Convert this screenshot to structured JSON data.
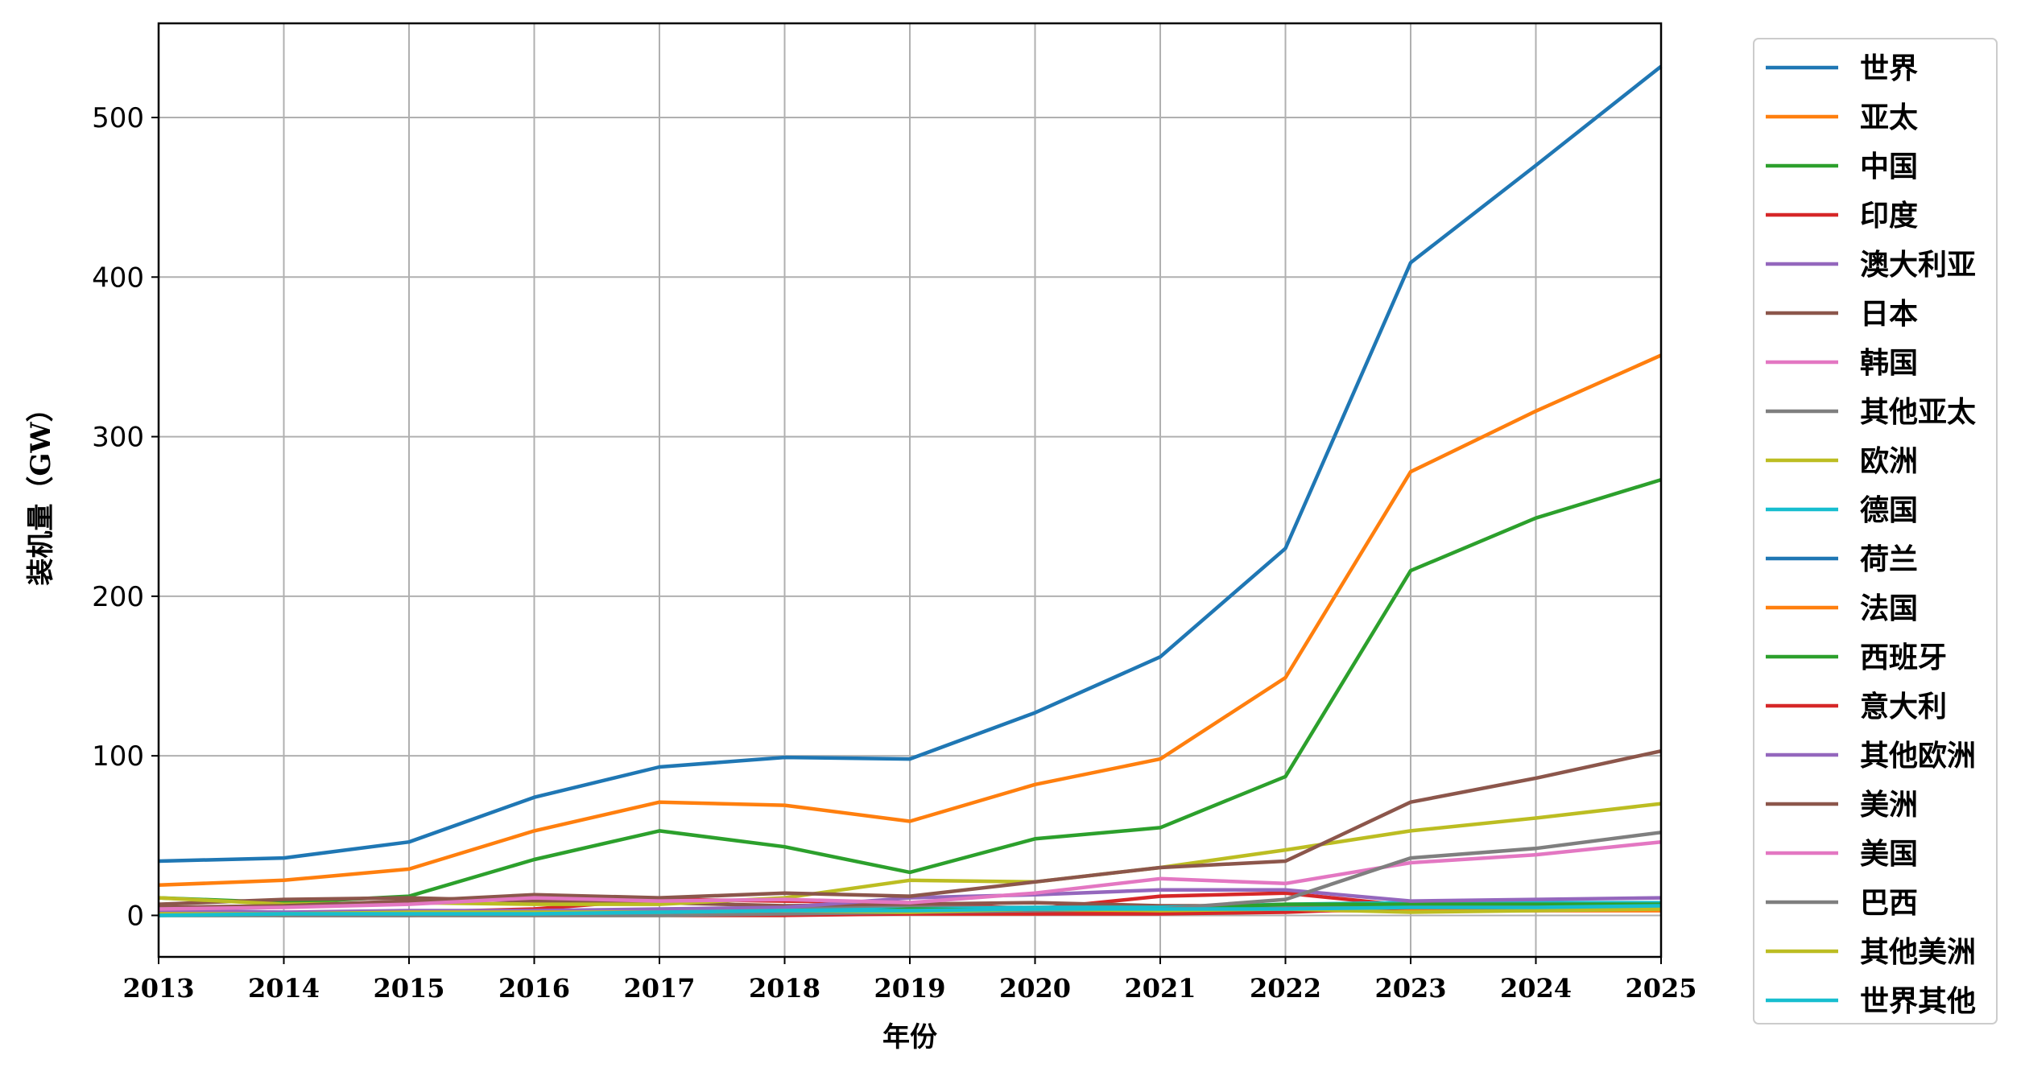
{
  "chart_data": {
    "type": "line",
    "title": "",
    "xlabel": "年份",
    "ylabel": "装机量（GW）",
    "x": [
      2013,
      2014,
      2015,
      2016,
      2017,
      2018,
      2019,
      2020,
      2021,
      2022,
      2023,
      2024,
      2025
    ],
    "xlim": [
      2013,
      2025
    ],
    "ylim": [
      -26,
      559
    ],
    "yticks": [
      0,
      100,
      200,
      300,
      400,
      500
    ],
    "grid": true,
    "legend_position": "outside-right",
    "series": [
      {
        "name": "世界",
        "color": "#1f77b4",
        "values": [
          34,
          36,
          46,
          74,
          93,
          99,
          98,
          127,
          162,
          230,
          409,
          470,
          532
        ]
      },
      {
        "name": "亚太",
        "color": "#ff7f0e",
        "values": [
          19,
          22,
          29,
          53,
          71,
          69,
          59,
          82,
          98,
          149,
          278,
          316,
          351
        ]
      },
      {
        "name": "中国",
        "color": "#2ca02c",
        "values": [
          11,
          8,
          12,
          35,
          53,
          43,
          27,
          48,
          55,
          87,
          216,
          249,
          273
        ]
      },
      {
        "name": "印度",
        "color": "#d62728",
        "values": [
          1,
          1,
          2,
          4,
          10,
          9,
          8,
          4,
          12,
          14,
          6,
          6,
          7
        ]
      },
      {
        "name": "澳大利亚",
        "color": "#9467bd",
        "values": [
          1,
          1,
          1,
          1,
          1,
          4,
          5,
          4,
          5,
          4,
          4,
          4,
          5
        ]
      },
      {
        "name": "日本",
        "color": "#8c564b",
        "values": [
          7,
          10,
          11,
          9,
          8,
          6,
          7,
          8,
          6,
          6,
          6,
          6,
          6
        ]
      },
      {
        "name": "韩国",
        "color": "#e377c2",
        "values": [
          0,
          1,
          1,
          1,
          1,
          2,
          3,
          4,
          4,
          3,
          3,
          3,
          3
        ]
      },
      {
        "name": "其他亚太",
        "color": "#7f7f7f",
        "values": [
          1,
          1,
          2,
          2,
          2,
          4,
          5,
          5,
          5,
          5,
          5,
          5,
          5
        ]
      },
      {
        "name": "欧洲",
        "color": "#bcbd22",
        "values": [
          11,
          7,
          8,
          7,
          7,
          11,
          22,
          21,
          30,
          41,
          53,
          61,
          70
        ]
      },
      {
        "name": "德国",
        "color": "#17becf",
        "values": [
          3,
          2,
          1,
          2,
          2,
          3,
          4,
          5,
          5,
          7,
          8,
          8,
          8
        ]
      },
      {
        "name": "荷兰",
        "color": "#1f77b4",
        "values": [
          0,
          0,
          0,
          1,
          1,
          2,
          3,
          3,
          3,
          4,
          4,
          4,
          4
        ]
      },
      {
        "name": "法国",
        "color": "#ff7f0e",
        "values": [
          1,
          1,
          1,
          1,
          1,
          1,
          1,
          1,
          2,
          3,
          3,
          3,
          3
        ]
      },
      {
        "name": "西班牙",
        "color": "#2ca02c",
        "values": [
          0,
          0,
          0,
          0,
          0,
          0,
          4,
          3,
          4,
          7,
          7,
          7,
          7
        ]
      },
      {
        "name": "意大利",
        "color": "#d62728",
        "values": [
          1,
          0,
          0,
          0,
          0,
          0,
          1,
          1,
          1,
          2,
          5,
          5,
          5
        ]
      },
      {
        "name": "其他欧洲",
        "color": "#9467bd",
        "values": [
          3,
          2,
          3,
          3,
          4,
          5,
          11,
          13,
          16,
          16,
          9,
          10,
          11
        ]
      },
      {
        "name": "美洲",
        "color": "#8c564b",
        "values": [
          5,
          6,
          9,
          13,
          11,
          14,
          12,
          21,
          30,
          34,
          71,
          86,
          103
        ]
      },
      {
        "name": "美国",
        "color": "#e377c2",
        "values": [
          4,
          5,
          7,
          11,
          9,
          10,
          8,
          14,
          23,
          20,
          33,
          38,
          46
        ]
      },
      {
        "name": "巴西",
        "color": "#7f7f7f",
        "values": [
          0,
          0,
          0,
          0,
          0,
          1,
          2,
          3,
          4,
          10,
          36,
          42,
          52
        ]
      },
      {
        "name": "其他美洲",
        "color": "#bcbd22",
        "values": [
          1,
          1,
          2,
          2,
          2,
          3,
          2,
          4,
          3,
          4,
          2,
          3,
          4
        ]
      },
      {
        "name": "世界其他",
        "color": "#17becf",
        "values": [
          0,
          1,
          1,
          1,
          2,
          3,
          3,
          4,
          4,
          4,
          5,
          5,
          6
        ]
      }
    ]
  }
}
